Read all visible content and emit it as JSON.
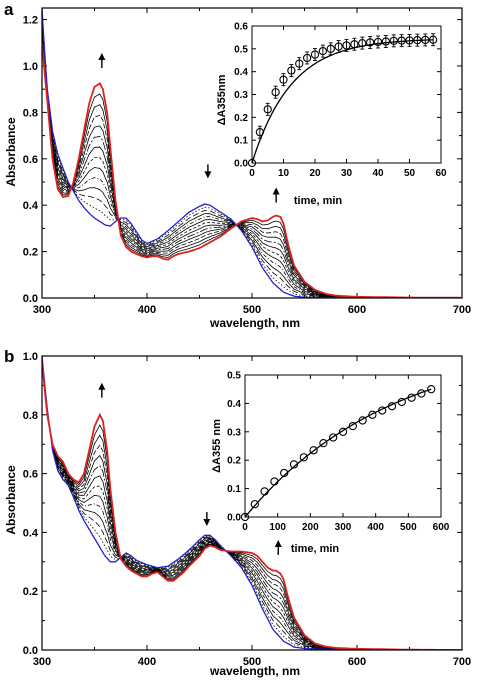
{
  "chart_data": [
    {
      "panel": "a",
      "type": "line",
      "xlabel": "wavelength, nm",
      "ylabel": "Absorbance",
      "xlim": [
        300,
        700
      ],
      "ylim": [
        0,
        1.25
      ],
      "x_ticks": [
        300,
        400,
        500,
        600,
        700
      ],
      "y_ticks": [
        0.0,
        0.2,
        0.4,
        0.6,
        0.8,
        1.0,
        1.2
      ],
      "annotations": [
        {
          "type": "arrow-up",
          "x": 357,
          "y": 1.0
        },
        {
          "type": "arrow-down",
          "x": 458,
          "y": 0.52
        },
        {
          "type": "arrow-up",
          "x": 523,
          "y": 0.42
        }
      ],
      "series": [
        {
          "role": "initial",
          "color": "#2222cc",
          "x": [
            300,
            302,
            305,
            310,
            315,
            320,
            325,
            330,
            335,
            340,
            345,
            350,
            355,
            360,
            365,
            370,
            375,
            380,
            385,
            390,
            395,
            400,
            410,
            420,
            430,
            440,
            450,
            455,
            460,
            465,
            470,
            480,
            490,
            500,
            510,
            520,
            530,
            540,
            550,
            560,
            580,
            600,
            650,
            700
          ],
          "y": [
            1.25,
            1.1,
            0.9,
            0.72,
            0.62,
            0.56,
            0.5,
            0.46,
            0.42,
            0.39,
            0.365,
            0.345,
            0.33,
            0.315,
            0.31,
            0.33,
            0.345,
            0.345,
            0.32,
            0.285,
            0.25,
            0.235,
            0.255,
            0.29,
            0.33,
            0.37,
            0.395,
            0.405,
            0.4,
            0.385,
            0.37,
            0.34,
            0.29,
            0.22,
            0.13,
            0.065,
            0.025,
            0.008,
            0.003,
            0.002,
            0.002,
            0.001,
            0.0,
            0.0
          ]
        },
        {
          "role": "final",
          "color": "#dd2222",
          "x": [
            300,
            305,
            310,
            315,
            320,
            325,
            330,
            335,
            340,
            345,
            350,
            355,
            358,
            362,
            365,
            370,
            375,
            380,
            385,
            390,
            395,
            400,
            405,
            410,
            415,
            420,
            425,
            430,
            435,
            440,
            450,
            460,
            470,
            480,
            490,
            500,
            505,
            510,
            515,
            520,
            523,
            527,
            530,
            535,
            540,
            550,
            560,
            570,
            580,
            600,
            650,
            700
          ],
          "y": [
            1.1,
            0.85,
            0.6,
            0.47,
            0.435,
            0.44,
            0.5,
            0.6,
            0.72,
            0.84,
            0.91,
            0.925,
            0.9,
            0.8,
            0.65,
            0.42,
            0.27,
            0.22,
            0.2,
            0.19,
            0.18,
            0.175,
            0.18,
            0.18,
            0.17,
            0.165,
            0.18,
            0.19,
            0.195,
            0.2,
            0.215,
            0.24,
            0.265,
            0.3,
            0.33,
            0.345,
            0.34,
            0.33,
            0.335,
            0.35,
            0.355,
            0.35,
            0.32,
            0.22,
            0.14,
            0.07,
            0.035,
            0.018,
            0.01,
            0.005,
            0.002,
            0.001
          ]
        }
      ],
      "inset": {
        "type": "scatter+line",
        "xlabel": "time, min",
        "ylabel": "ΔA355nm",
        "xlim": [
          0,
          60
        ],
        "ylim": [
          0,
          0.6
        ],
        "x_ticks": [
          0,
          10,
          20,
          30,
          40,
          50,
          60
        ],
        "y_ticks": [
          0.0,
          0.1,
          0.2,
          0.3,
          0.4,
          0.5,
          0.6
        ],
        "error_bars": true,
        "points": {
          "x": [
            0,
            2.5,
            5,
            7.5,
            10,
            12.5,
            15,
            17.5,
            20,
            22.5,
            25,
            27.5,
            30,
            32.5,
            35,
            37.5,
            40,
            42.5,
            45,
            47.5,
            50,
            52.5,
            55,
            57.5
          ],
          "y": [
            0.0,
            0.135,
            0.235,
            0.31,
            0.365,
            0.405,
            0.435,
            0.46,
            0.475,
            0.49,
            0.5,
            0.51,
            0.515,
            0.52,
            0.525,
            0.528,
            0.53,
            0.532,
            0.535,
            0.536,
            0.537,
            0.538,
            0.539,
            0.54
          ]
        },
        "fit": {
          "A": 0.545,
          "k": 0.08
        }
      }
    },
    {
      "panel": "b",
      "type": "line",
      "xlabel": "wavelength, nm",
      "ylabel": "Absorbance",
      "xlim": [
        300,
        700
      ],
      "ylim": [
        0,
        1.0
      ],
      "x_ticks": [
        300,
        400,
        500,
        600,
        700
      ],
      "y_ticks": [
        0.0,
        0.2,
        0.4,
        0.6,
        0.8,
        1.0
      ],
      "annotations": [
        {
          "type": "arrow-up",
          "x": 357,
          "y": 0.865
        },
        {
          "type": "arrow-down",
          "x": 457,
          "y": 0.425
        },
        {
          "type": "arrow-up",
          "x": 525,
          "y": 0.33
        }
      ],
      "series": [
        {
          "role": "initial",
          "color": "#2222cc",
          "x": [
            300,
            305,
            310,
            315,
            320,
            325,
            330,
            335,
            340,
            345,
            350,
            355,
            360,
            365,
            370,
            375,
            380,
            385,
            390,
            400,
            410,
            420,
            430,
            440,
            450,
            455,
            460,
            465,
            470,
            480,
            490,
            500,
            510,
            520,
            530,
            540,
            550,
            560,
            580,
            600,
            650,
            700
          ],
          "y": [
            1.0,
            0.82,
            0.68,
            0.61,
            0.58,
            0.56,
            0.52,
            0.475,
            0.44,
            0.41,
            0.38,
            0.35,
            0.32,
            0.3,
            0.3,
            0.315,
            0.33,
            0.32,
            0.305,
            0.29,
            0.28,
            0.285,
            0.31,
            0.34,
            0.375,
            0.39,
            0.39,
            0.375,
            0.355,
            0.32,
            0.28,
            0.22,
            0.14,
            0.07,
            0.03,
            0.01,
            0.005,
            0.003,
            0.002,
            0.001,
            0.0,
            0.0
          ]
        },
        {
          "role": "final",
          "color": "#dd2222",
          "x": [
            300,
            305,
            310,
            315,
            320,
            325,
            330,
            335,
            340,
            345,
            350,
            355,
            358,
            362,
            365,
            370,
            375,
            380,
            385,
            390,
            395,
            400,
            405,
            410,
            415,
            420,
            425,
            430,
            435,
            440,
            450,
            455,
            460,
            465,
            470,
            480,
            490,
            500,
            505,
            510,
            515,
            520,
            523,
            527,
            530,
            535,
            540,
            550,
            560,
            570,
            580,
            600,
            650,
            700
          ],
          "y": [
            0.98,
            0.8,
            0.7,
            0.66,
            0.64,
            0.6,
            0.58,
            0.57,
            0.6,
            0.68,
            0.76,
            0.8,
            0.78,
            0.68,
            0.55,
            0.4,
            0.31,
            0.285,
            0.27,
            0.26,
            0.25,
            0.25,
            0.26,
            0.265,
            0.25,
            0.235,
            0.235,
            0.25,
            0.265,
            0.285,
            0.32,
            0.345,
            0.355,
            0.35,
            0.34,
            0.335,
            0.335,
            0.33,
            0.32,
            0.3,
            0.28,
            0.27,
            0.27,
            0.26,
            0.24,
            0.17,
            0.11,
            0.05,
            0.022,
            0.012,
            0.007,
            0.004,
            0.001,
            0.0
          ]
        }
      ],
      "inset": {
        "type": "scatter+line",
        "xlabel": "time, min",
        "ylabel": "ΔA355 nm",
        "xlim": [
          0,
          600
        ],
        "ylim": [
          0,
          0.5
        ],
        "x_ticks": [
          0,
          100,
          200,
          300,
          400,
          500,
          600
        ],
        "y_ticks": [
          0.0,
          0.1,
          0.2,
          0.3,
          0.4,
          0.5
        ],
        "error_bars": false,
        "points": {
          "x": [
            0,
            30,
            60,
            90,
            120,
            150,
            180,
            210,
            240,
            270,
            300,
            330,
            360,
            390,
            420,
            450,
            480,
            510,
            540,
            570
          ],
          "y": [
            0.0,
            0.045,
            0.09,
            0.125,
            0.155,
            0.185,
            0.21,
            0.235,
            0.26,
            0.28,
            0.3,
            0.32,
            0.34,
            0.36,
            0.375,
            0.39,
            0.405,
            0.42,
            0.435,
            0.45
          ]
        },
        "fit": {
          "A": 0.63,
          "k": 0.0022
        }
      }
    }
  ]
}
